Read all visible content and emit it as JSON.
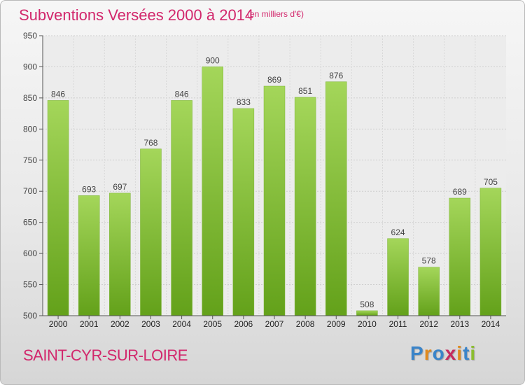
{
  "header": {
    "title": "Subventions Versées 2000 à 2014",
    "subtitle": "(en milliers d'€)"
  },
  "footer": {
    "city": "SAINT-CYR-SUR-LOIRE",
    "logo_letters": [
      "P",
      "r",
      "o",
      "x",
      "i",
      "t",
      "i"
    ],
    "logo_colors": [
      "#3a84c9",
      "#e08a1e",
      "#3a84c9",
      "#c62a5e",
      "#e08a1e",
      "#3a84c9",
      "#8bbd2f"
    ]
  },
  "colors": {
    "bar_light": "#a4d65a",
    "bar_dark": "#63a11a",
    "title": "#d2276c",
    "axis_text": "#444444"
  },
  "chart_data": {
    "type": "bar",
    "title": "Subventions Versées 2000 à 2014",
    "subtitle": "(en milliers d'€)",
    "xlabel": "",
    "ylabel": "",
    "categories": [
      "2000",
      "2001",
      "2002",
      "2003",
      "2004",
      "2005",
      "2006",
      "2007",
      "2008",
      "2009",
      "2010",
      "2011",
      "2012",
      "2013",
      "2014"
    ],
    "values": [
      846,
      693,
      697,
      768,
      846,
      900,
      833,
      869,
      851,
      876,
      508,
      624,
      578,
      689,
      705
    ],
    "ylim": [
      500,
      950
    ],
    "yticks": [
      500,
      550,
      600,
      650,
      700,
      750,
      800,
      850,
      900,
      950
    ],
    "grid": true,
    "legend": "none"
  }
}
